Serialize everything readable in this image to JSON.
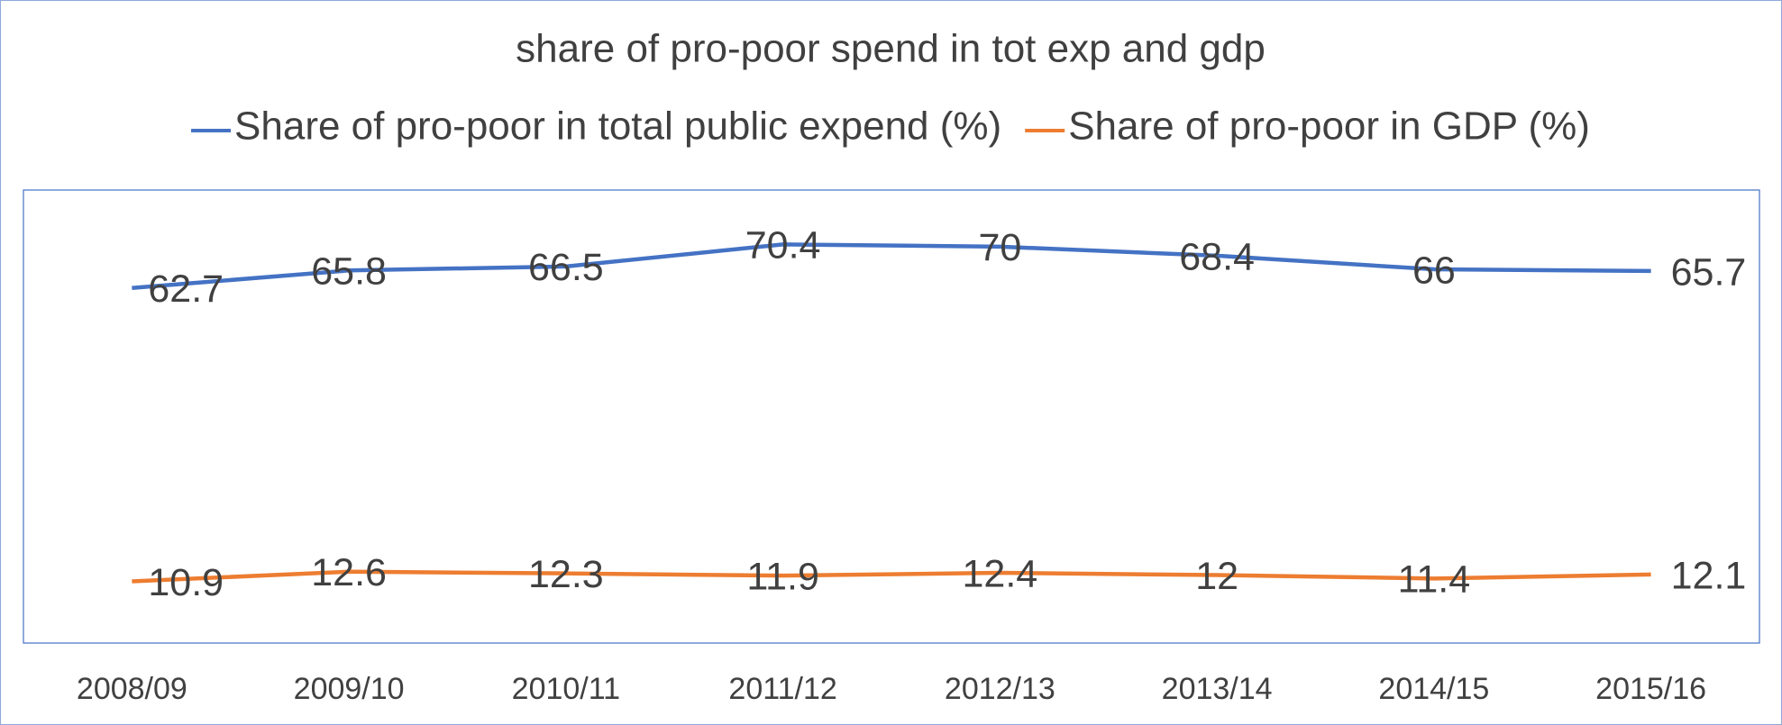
{
  "chart_data": {
    "type": "line",
    "title": "share of pro-poor spend in tot exp and gdp",
    "categories": [
      "2008/09",
      "2009/10",
      "2010/11",
      "2011/12",
      "2012/13",
      "2013/14",
      "2014/15",
      "2015/16"
    ],
    "series": [
      {
        "name": "Share of pro-poor in total public expend (%)",
        "color": "#4472c4",
        "values": [
          62.7,
          65.8,
          66.5,
          70.4,
          70,
          68.4,
          66,
          65.7
        ]
      },
      {
        "name": "Share of pro-poor in GDP (%)",
        "color": "#ed7d31",
        "values": [
          10.9,
          12.6,
          12.3,
          11.9,
          12.4,
          12,
          11.4,
          12.1
        ]
      }
    ],
    "ylim": [
      0,
      80
    ],
    "legend": "top"
  }
}
